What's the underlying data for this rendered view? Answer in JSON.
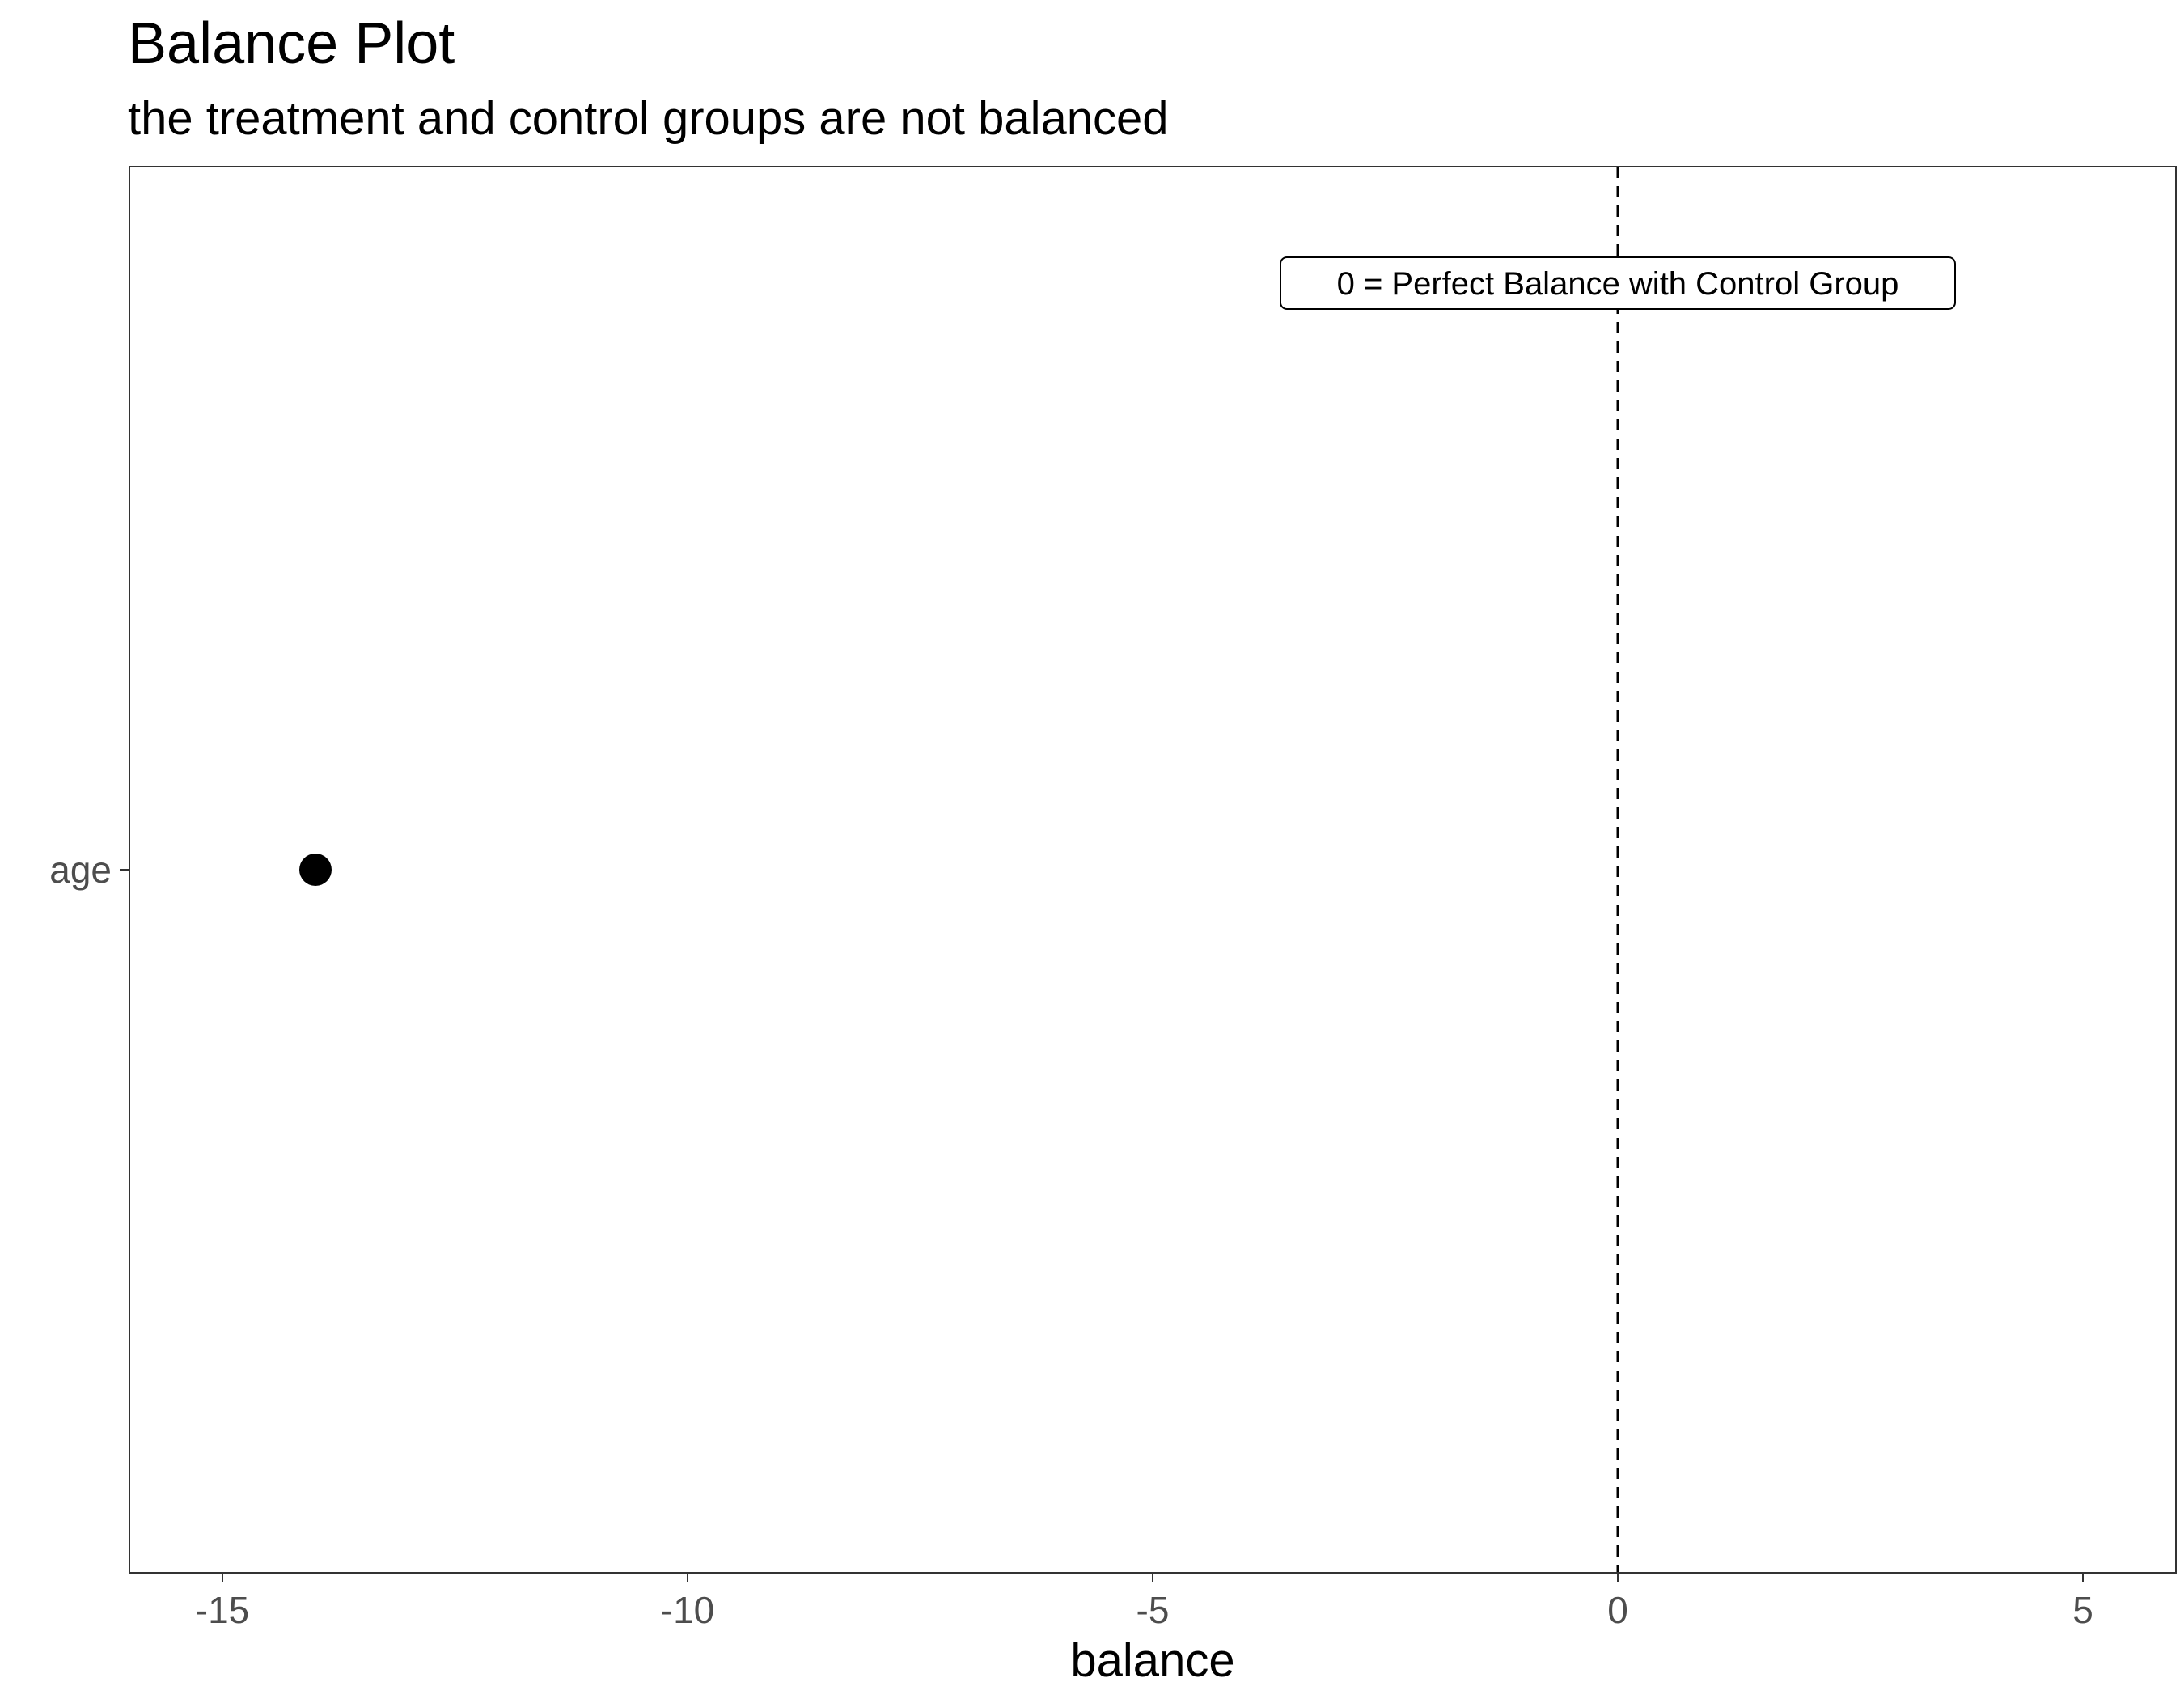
{
  "chart_data": {
    "type": "scatter",
    "title": "Balance Plot",
    "subtitle": "the treatment and control groups are not balanced",
    "xlabel": "balance",
    "ylabel": "",
    "xlim": [
      -16,
      6
    ],
    "x_ticks": [
      -15,
      -10,
      -5,
      0,
      5
    ],
    "x_tick_labels": [
      "-15",
      "-10",
      "-5",
      "0",
      "5"
    ],
    "categories": [
      "age"
    ],
    "points": [
      {
        "category": "age",
        "x": -14
      }
    ],
    "reference_line": {
      "x": 0,
      "style": "dashed"
    },
    "annotation": {
      "text": "0 = Perfect Balance with Control Group",
      "x": 0
    },
    "grid": false,
    "legend": "none",
    "colors": {
      "point": "#000000",
      "line": "#000000",
      "panel_border": "#333333"
    }
  }
}
